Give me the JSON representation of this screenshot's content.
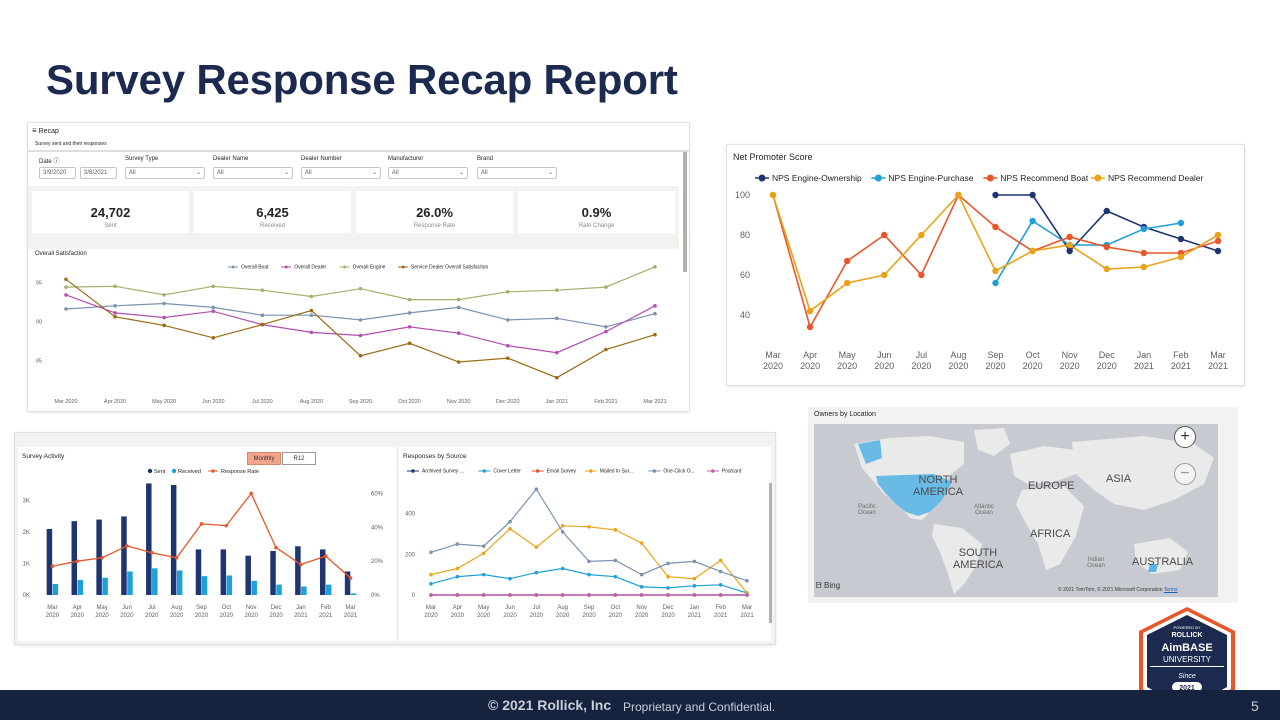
{
  "slide": {
    "title": "Survey Response Recap Report",
    "footer_copy": "© 2021 Rollick, Inc",
    "footer_conf": "Proprietary and Confidential.",
    "page_number": "5"
  },
  "recap": {
    "header": "Recap",
    "subtitle": "Survey sent and their responses",
    "filters": {
      "date_label": "Date",
      "date_from": "3/9/2020",
      "date_to": "3/8/2021",
      "survey_type_label": "Survey Type",
      "survey_type_value": "All",
      "dealer_name_label": "Dealer Name",
      "dealer_name_value": "All",
      "dealer_number_label": "Dealer Number",
      "dealer_number_value": "All",
      "manufacturer_label": "Manufacturer",
      "manufacturer_value": "All",
      "brand_label": "Brand",
      "brand_value": "All"
    },
    "cards": [
      {
        "value": "24,702",
        "label": "Sent"
      },
      {
        "value": "6,425",
        "label": "Received"
      },
      {
        "value": "26.0%",
        "label": "Response Rate"
      },
      {
        "value": "0.9%",
        "label": "Rate Change"
      }
    ]
  },
  "logo": {
    "powered_by": "POWERED BY",
    "rollick": "ROLLICK",
    "brand": "AimBASE",
    "university": "UNIVERSITY",
    "since": "Since",
    "year": "2021"
  },
  "map": {
    "title": "Owners by Location",
    "labels": {
      "north_america": "NORTH AMERICA",
      "europe": "EUROPE",
      "asia": "ASIA",
      "africa": "AFRICA",
      "south_america": "SOUTH AMERICA",
      "australia": "AUSTRALIA",
      "pacific": "Pacific Ocean",
      "atlantic": "Atlantic Ocean",
      "indian": "Indian Ocean"
    },
    "bing": "Bing",
    "attribution": "© 2021 TomTom, © 2021 Microsoft Corporation",
    "terms": "Terms",
    "zoom_in": "+",
    "zoom_out": "−"
  },
  "survey_activity_toggle": {
    "monthly": "Monthly",
    "r12": "R12"
  },
  "colors": {
    "navy": "#1b2a4e",
    "nps_ownership": "#1f3572",
    "nps_purchase": "#1ea0d8",
    "nps_boat": "#e8562a",
    "nps_dealer": "#e8a317"
  },
  "chart_data": [
    {
      "id": "overall",
      "type": "line",
      "title": "Overall Satisfaction",
      "categories": [
        "Mar 2020",
        "Apr 2020",
        "May 2020",
        "Jun 2020",
        "Jul 2020",
        "Aug 2020",
        "Sep 2020",
        "Oct 2020",
        "Nov 2020",
        "Dec 2020",
        "Jan 2021",
        "Feb 2021",
        "Mar 2021"
      ],
      "y_ticks": [
        "85",
        "90",
        "95"
      ],
      "ylim": [
        82.5,
        98
      ],
      "legend": "top-center",
      "series": [
        {
          "name": "Overall Boat",
          "color": "#7a93b0",
          "values": [
            91.6,
            92.0,
            92.3,
            91.8,
            90.8,
            90.8,
            90.2,
            91.1,
            91.8,
            90.2,
            90.4,
            89.3,
            91.0
          ]
        },
        {
          "name": "Overall Dealer",
          "color": "#b24fb0",
          "values": [
            93.4,
            91.1,
            90.5,
            91.3,
            89.6,
            88.6,
            88.2,
            89.3,
            88.5,
            86.9,
            86.0,
            88.7,
            92.0
          ]
        },
        {
          "name": "Overall Engine",
          "color": "#9fb36a",
          "values": [
            94.4,
            94.5,
            93.4,
            94.5,
            94.0,
            93.2,
            94.2,
            92.8,
            92.8,
            93.8,
            94.0,
            94.4,
            97.0
          ]
        },
        {
          "name": "Service Dealer Overall Satisfaction",
          "color": "#9c6b12",
          "values": [
            95.4,
            90.6,
            89.5,
            87.9,
            89.6,
            91.4,
            85.6,
            87.2,
            84.8,
            85.3,
            82.8,
            86.4,
            88.3
          ]
        }
      ]
    },
    {
      "id": "nps",
      "type": "line",
      "title": "Net Promoter Score",
      "categories": [
        "Mar 2020",
        "Apr 2020",
        "May 2020",
        "Jun 2020",
        "Jul 2020",
        "Aug 2020",
        "Sep 2020",
        "Oct 2020",
        "Nov 2020",
        "Dec 2020",
        "Jan 2021",
        "Feb 2021",
        "Mar 2021"
      ],
      "y_ticks": [
        "40",
        "60",
        "80",
        "100"
      ],
      "ylim": [
        30,
        105
      ],
      "legend": "top-left",
      "series": [
        {
          "name": "NPS Engine-Ownership",
          "color": "#1f3572",
          "values": [
            null,
            null,
            null,
            null,
            null,
            null,
            100,
            100,
            72,
            92,
            84,
            78,
            72
          ]
        },
        {
          "name": "NPS Engine-Purchase",
          "color": "#1ea0d8",
          "values": [
            null,
            null,
            null,
            null,
            null,
            null,
            56,
            87,
            75,
            75,
            83,
            86,
            null
          ]
        },
        {
          "name": "NPS Recommend Boat",
          "color": "#e8562a",
          "values": [
            100,
            34,
            67,
            80,
            60,
            100,
            84,
            72,
            79,
            74,
            71,
            71,
            77
          ]
        },
        {
          "name": "NPS Recommend Dealer",
          "color": "#e8a317",
          "values": [
            100,
            42,
            56,
            60,
            80,
            100,
            62,
            72,
            75,
            63,
            64,
            69,
            80
          ]
        }
      ]
    },
    {
      "id": "activity",
      "type": "bar",
      "title": "Survey Activity",
      "categories": [
        "Mar 2020",
        "Apr 2020",
        "May 2020",
        "Jun 2020",
        "Jul 2020",
        "Aug 2020",
        "Sep 2020",
        "Oct 2020",
        "Nov 2020",
        "Dec 2020",
        "Jan 2021",
        "Feb 2021",
        "Mar 2021"
      ],
      "y_ticks": [
        "0K",
        "1K",
        "2K",
        "3K"
      ],
      "y2_ticks": [
        "0%",
        "20%",
        "40%",
        "60%"
      ],
      "ylim": [
        0,
        3.5
      ],
      "y2lim": [
        0,
        0.65
      ],
      "legend": "top-center",
      "series": [
        {
          "name": "Sent",
          "color": "#1f3572",
          "values": [
            2.1,
            2.35,
            2.4,
            2.5,
            3.55,
            3.5,
            1.45,
            1.45,
            1.25,
            1.4,
            1.55,
            1.45,
            0.75
          ]
        },
        {
          "name": "Received",
          "color": "#1ea0d8",
          "values": [
            0.35,
            0.48,
            0.55,
            0.75,
            0.85,
            0.78,
            0.6,
            0.62,
            0.45,
            0.33,
            0.27,
            0.33,
            0.05
          ]
        },
        {
          "name": "Response Rate",
          "color": "#e8562a",
          "type": "line",
          "values": [
            0.17,
            0.2,
            0.22,
            0.29,
            0.25,
            0.22,
            0.42,
            0.41,
            0.6,
            0.28,
            0.18,
            0.23,
            0.1
          ]
        }
      ]
    },
    {
      "id": "sources",
      "type": "line",
      "title": "Responses by Source",
      "categories": [
        "Mar 2020",
        "Apr 2020",
        "May 2020",
        "Jun 2020",
        "Jul 2020",
        "Aug 2020",
        "Sep 2020",
        "Oct 2020",
        "Nov 2020",
        "Dec 2020",
        "Jan 2021",
        "Feb 2021",
        "Mar 2021"
      ],
      "y_ticks": [
        "0",
        "200",
        "400"
      ],
      "ylim": [
        0,
        560
      ],
      "legend": "top-center",
      "series": [
        {
          "name": "Archived Survey ...",
          "color": "#1f3572",
          "values": [
            0,
            0,
            0,
            0,
            0,
            0,
            0,
            0,
            0,
            0,
            0,
            0,
            0
          ]
        },
        {
          "name": "Cover Letter",
          "color": "#1ea0d8",
          "values": [
            55,
            90,
            100,
            80,
            110,
            130,
            100,
            90,
            40,
            35,
            45,
            50,
            10
          ]
        },
        {
          "name": "Email Survey",
          "color": "#e8562a",
          "values": [
            0,
            0,
            0,
            0,
            0,
            0,
            0,
            0,
            0,
            0,
            0,
            0,
            0
          ]
        },
        {
          "name": "Mailed In Sur...",
          "color": "#e8a317",
          "values": [
            100,
            130,
            205,
            325,
            235,
            340,
            335,
            320,
            255,
            90,
            80,
            170,
            10
          ]
        },
        {
          "name": "One-Click O...",
          "color": "#7a93b0",
          "values": [
            210,
            250,
            240,
            360,
            520,
            310,
            165,
            170,
            100,
            155,
            165,
            115,
            70
          ]
        },
        {
          "name": "Postcard",
          "color": "#c35db0",
          "values": [
            0,
            0,
            0,
            0,
            0,
            0,
            0,
            0,
            0,
            0,
            0,
            0,
            0
          ]
        }
      ]
    }
  ]
}
